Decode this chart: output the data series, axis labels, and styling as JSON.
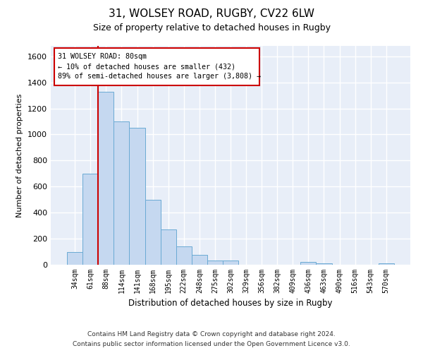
{
  "title_line1": "31, WOLSEY ROAD, RUGBY, CV22 6LW",
  "title_line2": "Size of property relative to detached houses in Rugby",
  "xlabel": "Distribution of detached houses by size in Rugby",
  "ylabel": "Number of detached properties",
  "bar_color": "#c5d8f0",
  "bar_edge_color": "#6aaad4",
  "background_color": "#e8eef8",
  "grid_color": "#ffffff",
  "annotation_line1": "31 WOLSEY ROAD: 80sqm",
  "annotation_line2": "← 10% of detached houses are smaller (432)",
  "annotation_line3": "89% of semi-detached houses are larger (3,808) →",
  "vline_color": "#cc0000",
  "categories": [
    "34sqm",
    "61sqm",
    "88sqm",
    "114sqm",
    "141sqm",
    "168sqm",
    "195sqm",
    "222sqm",
    "248sqm",
    "275sqm",
    "302sqm",
    "329sqm",
    "356sqm",
    "382sqm",
    "409sqm",
    "436sqm",
    "463sqm",
    "490sqm",
    "516sqm",
    "543sqm",
    "570sqm"
  ],
  "values": [
    100,
    700,
    1330,
    1100,
    1050,
    500,
    270,
    140,
    75,
    35,
    35,
    0,
    0,
    0,
    0,
    20,
    10,
    0,
    0,
    0,
    10
  ],
  "ylim": [
    0,
    1680
  ],
  "yticks": [
    0,
    200,
    400,
    600,
    800,
    1000,
    1200,
    1400,
    1600
  ],
  "footnote_line1": "Contains HM Land Registry data © Crown copyright and database right 2024.",
  "footnote_line2": "Contains public sector information licensed under the Open Government Licence v3.0."
}
